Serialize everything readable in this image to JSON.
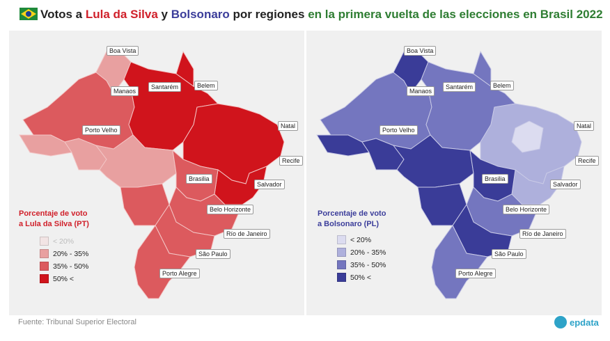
{
  "title": {
    "part1": "Votos a ",
    "lula": "Lula da Silva",
    "part2": " y ",
    "bolsonaro": "Bolsonaro",
    "part3": " por regiones ",
    "part4": "en la primera vuelta de las elecciones en Brasil 2022",
    "colors": {
      "lula": "#d0202a",
      "bolsonaro": "#3b3d9a",
      "tail": "#2e7d32",
      "base": "#222222"
    }
  },
  "flag_icon": "brazil-flag-icon",
  "lula_map": {
    "legend_title": "Porcentaje de voto\na Lula da Silva (PT)",
    "legend_color": "#d0202a",
    "legend": [
      {
        "label": "< 20%",
        "color": "#f2e4e4",
        "muted": true
      },
      {
        "label": "20% - 35%",
        "color": "#e8a0a0"
      },
      {
        "label": "35% - 50%",
        "color": "#dc5a5e"
      },
      {
        "label": "50% <",
        "color": "#d0141c"
      }
    ],
    "cities": [
      "Boa Vista",
      "Manaos",
      "Santarém",
      "Belem",
      "Porto Velho",
      "Natal",
      "Recife",
      "Brasilia",
      "Salvador",
      "Belo Horizonte",
      "Río de Janeiro",
      "São Paulo",
      "Porto Alegre"
    ]
  },
  "bolsonaro_map": {
    "legend_title": "Porcentaje de voto\na Bolsonaro (PL)",
    "legend_color": "#3b3d9a",
    "legend": [
      {
        "label": "< 20%",
        "color": "#dcdcf0"
      },
      {
        "label": "20% - 35%",
        "color": "#aeb0dc"
      },
      {
        "label": "35% - 50%",
        "color": "#7476bf"
      },
      {
        "label": "50% <",
        "color": "#3a3c98"
      }
    ],
    "cities": [
      "Boa Vista",
      "Manaos",
      "Santarém",
      "Belem",
      "Porto Velho",
      "Natal",
      "Recife",
      "Brasilia",
      "Salvador",
      "Belo Horizonte",
      "Río de Janeiro",
      "São Paulo",
      "Porto Alegre"
    ]
  },
  "source": "Fuente: Tribunal Superior Electoral",
  "logo": "epdata"
}
